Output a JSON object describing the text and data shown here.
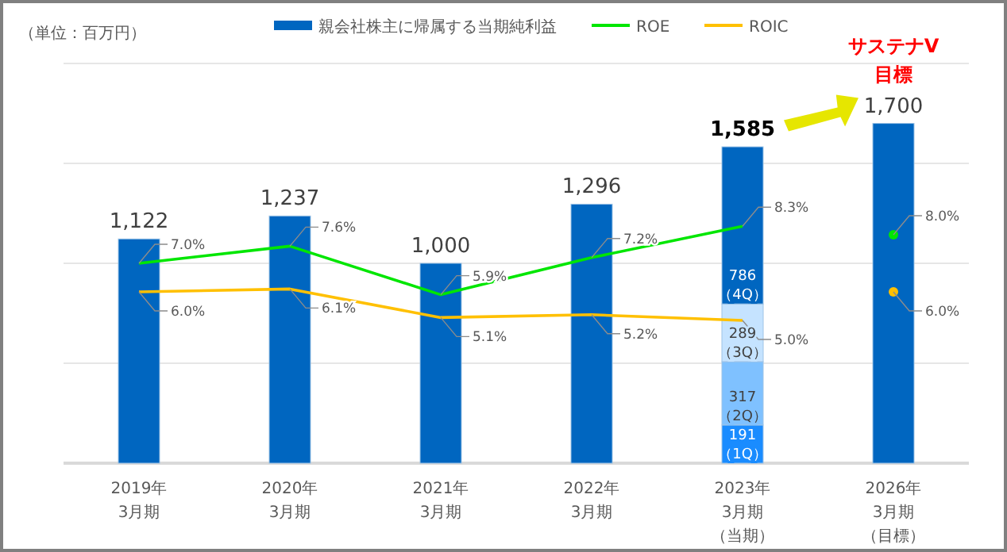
{
  "chart_data": {
    "type": "bar",
    "stacked": true,
    "legend": "top",
    "grid": "y",
    "tick_labels": "x",
    "categories": [
      "2019年3月期",
      "2020年3月期",
      "2021年3月期",
      "2022年3月期",
      "2023年3月期（当期）",
      "2026年3月期（目標）"
    ],
    "ylim": [
      0,
      2000
    ],
    "yticks": [
      {
        "value": 0,
        "label": null
      },
      {
        "value": 500,
        "label": null
      },
      {
        "value": 1000,
        "label": null
      },
      {
        "value": 1500,
        "label": null
      },
      {
        "value": 2000,
        "label": null
      }
    ],
    "y2lim": [
      0,
      14
    ],
    "series": [
      {
        "name": "親会社株主に帰属する当期純利益",
        "color": "#0066c0",
        "values": [
          1122,
          1237,
          1000,
          1296,
          null,
          1700
        ],
        "value_labels": [
          "1,122",
          "1,237",
          "1,000",
          "1,296",
          null,
          "1,700"
        ]
      },
      {
        "color": "#1a8cff",
        "values": [
          null,
          null,
          null,
          null,
          191,
          null
        ],
        "value_labels": [
          null,
          null,
          null,
          null,
          "191\n（1Q）",
          null
        ]
      },
      {
        "color": "#7fc1ff",
        "values": [
          null,
          null,
          null,
          null,
          317,
          null
        ],
        "value_labels": [
          null,
          null,
          null,
          null,
          "317\n（2Q）",
          null
        ]
      },
      {
        "color": "#c5e3ff",
        "values": [
          null,
          null,
          null,
          null,
          289,
          null
        ],
        "value_labels": [
          null,
          null,
          null,
          null,
          "289\n（3Q）",
          null
        ]
      },
      {
        "color": "#0066c0",
        "values": [
          null,
          null,
          null,
          null,
          786,
          null
        ],
        "value_labels": [
          null,
          null,
          null,
          null,
          "786\n（4Q）",
          null
        ]
      },
      {
        "name": "ROE",
        "type": "line",
        "axis": "y2",
        "color": "#00e600",
        "values": [
          7.0,
          7.6,
          5.9,
          7.2,
          8.3,
          null
        ],
        "value_labels": [
          "7.0%",
          "7.6%",
          "5.9%",
          "7.2%",
          "8.3%",
          null
        ]
      },
      {
        "name": "ROIC",
        "type": "line",
        "axis": "y2",
        "color": "#ffc000",
        "values": [
          6.0,
          6.1,
          5.1,
          5.2,
          5.0,
          null
        ],
        "value_labels": [
          "6.0%",
          "6.1%",
          "5.1%",
          "5.2%",
          "5.0%",
          null
        ]
      },
      {
        "type": "scatter",
        "axis": "y2",
        "color": "#00e600",
        "values": [
          null,
          null,
          null,
          null,
          null,
          8.0
        ],
        "value_labels": [
          null,
          null,
          null,
          null,
          null,
          "8.0%"
        ]
      },
      {
        "type": "scatter",
        "axis": "y2",
        "color": "#ffc000",
        "values": [
          null,
          null,
          null,
          null,
          null,
          6.0
        ],
        "value_labels": [
          null,
          null,
          null,
          null,
          null,
          "6.0%"
        ]
      }
    ],
    "totals": [
      null,
      null,
      null,
      null,
      "1,585",
      null
    ],
    "annotations": [
      "（単位：百万円）",
      "サステナV目標"
    ]
  }
}
